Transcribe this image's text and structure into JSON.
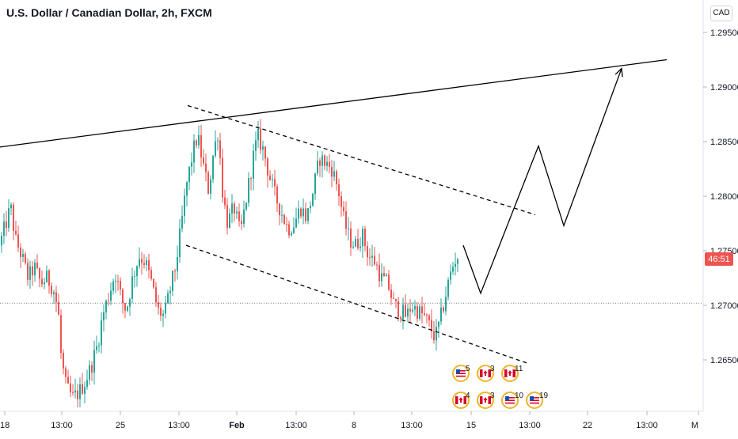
{
  "header": {
    "title": "U.S. Dollar / Canadian Dollar, 2h, FXCM",
    "currency_button": "CAD"
  },
  "colors": {
    "up": "#26a69a",
    "down": "#ef5350",
    "axis_text": "#131722",
    "current_price_bg": "#ef5350",
    "pattern_lines": "#000000"
  },
  "price_tag": "46:51",
  "chart_data": {
    "type": "candlestick",
    "symbol": "USDCAD",
    "timeframe": "2h",
    "ylim": [
      1.2605,
      1.2985
    ],
    "x_ticks": [
      "18",
      "13:00",
      "25",
      "13:00",
      "Feb",
      "13:00",
      "8",
      "13:00",
      "15",
      "13:00",
      "22",
      "13:00",
      "M"
    ],
    "y_ticks": [
      "1.26500",
      "1.27000",
      "1.27500",
      "1.28000",
      "1.28500",
      "1.29000",
      "1.29500"
    ],
    "y_tick_values": [
      1.265,
      1.27,
      1.275,
      1.28,
      1.285,
      1.29,
      1.295
    ],
    "approx_price_path": [
      [
        0,
        1.2755
      ],
      [
        8,
        1.2775
      ],
      [
        14,
        1.279
      ],
      [
        20,
        1.276
      ],
      [
        28,
        1.2745
      ],
      [
        36,
        1.2725
      ],
      [
        44,
        1.2735
      ],
      [
        52,
        1.272
      ],
      [
        60,
        1.2725
      ],
      [
        68,
        1.2715
      ],
      [
        74,
        1.2695
      ],
      [
        78,
        1.265
      ],
      [
        84,
        1.2625
      ],
      [
        92,
        1.2615
      ],
      [
        100,
        1.262
      ],
      [
        108,
        1.263
      ],
      [
        116,
        1.2645
      ],
      [
        124,
        1.2665
      ],
      [
        130,
        1.269
      ],
      [
        138,
        1.271
      ],
      [
        146,
        1.273
      ],
      [
        154,
        1.2705
      ],
      [
        160,
        1.2695
      ],
      [
        168,
        1.2725
      ],
      [
        176,
        1.2745
      ],
      [
        184,
        1.274
      ],
      [
        192,
        1.272
      ],
      [
        200,
        1.2695
      ],
      [
        208,
        1.269
      ],
      [
        214,
        1.271
      ],
      [
        222,
        1.2735
      ],
      [
        228,
        1.2765
      ],
      [
        236,
        1.281
      ],
      [
        244,
        1.284
      ],
      [
        250,
        1.2855
      ],
      [
        258,
        1.2825
      ],
      [
        264,
        1.2805
      ],
      [
        270,
        1.284
      ],
      [
        276,
        1.286
      ],
      [
        282,
        1.28
      ],
      [
        288,
        1.2775
      ],
      [
        296,
        1.279
      ],
      [
        304,
        1.2765
      ],
      [
        312,
        1.28
      ],
      [
        320,
        1.2835
      ],
      [
        326,
        1.2855
      ],
      [
        334,
        1.284
      ],
      [
        340,
        1.282
      ],
      [
        348,
        1.28
      ],
      [
        356,
        1.2785
      ],
      [
        364,
        1.277
      ],
      [
        372,
        1.2775
      ],
      [
        380,
        1.279
      ],
      [
        388,
        1.278
      ],
      [
        396,
        1.2805
      ],
      [
        404,
        1.2835
      ],
      [
        412,
        1.283
      ],
      [
        420,
        1.2825
      ],
      [
        428,
        1.2805
      ],
      [
        434,
        1.278
      ],
      [
        442,
        1.276
      ],
      [
        450,
        1.2755
      ],
      [
        458,
        1.2765
      ],
      [
        466,
        1.2745
      ],
      [
        474,
        1.274
      ],
      [
        482,
        1.2725
      ],
      [
        490,
        1.272
      ],
      [
        498,
        1.27
      ],
      [
        506,
        1.2695
      ],
      [
        514,
        1.269
      ],
      [
        520,
        1.27
      ],
      [
        528,
        1.2695
      ],
      [
        536,
        1.269
      ],
      [
        544,
        1.268
      ],
      [
        550,
        1.267
      ],
      [
        556,
        1.2685
      ],
      [
        562,
        1.2705
      ],
      [
        568,
        1.2725
      ],
      [
        574,
        1.274
      ],
      [
        578,
        1.2745
      ]
    ],
    "current_price": 1.2745,
    "horizontal_dotted_level": 1.2702,
    "trendline_resistance": [
      [
        0,
        1.2845
      ],
      [
        842,
        1.2925
      ]
    ],
    "channel_upper": [
      [
        237,
        1.2883
      ],
      [
        676,
        1.2783
      ]
    ],
    "channel_lower": [
      [
        235,
        1.2755
      ],
      [
        666,
        1.2647
      ]
    ],
    "projection_path": [
      [
        585,
        1.2755
      ],
      [
        607,
        1.2711
      ],
      [
        680,
        1.2846
      ],
      [
        712,
        1.2773
      ],
      [
        785,
        1.2917
      ]
    ],
    "calendar_events": [
      {
        "flag": "US",
        "count": "5",
        "row": 0,
        "col": 0
      },
      {
        "flag": "CA",
        "count": "3",
        "row": 0,
        "col": 1
      },
      {
        "flag": "CA",
        "count": "11",
        "row": 0,
        "col": 2
      },
      {
        "flag": "CA",
        "count": "4",
        "row": 1,
        "col": 0
      },
      {
        "flag": "CA",
        "count": "3",
        "row": 1,
        "col": 1
      },
      {
        "flag": "US",
        "count": "10",
        "row": 1,
        "col": 2
      },
      {
        "flag": "US",
        "count": "19",
        "row": 1,
        "col": 3
      }
    ]
  }
}
